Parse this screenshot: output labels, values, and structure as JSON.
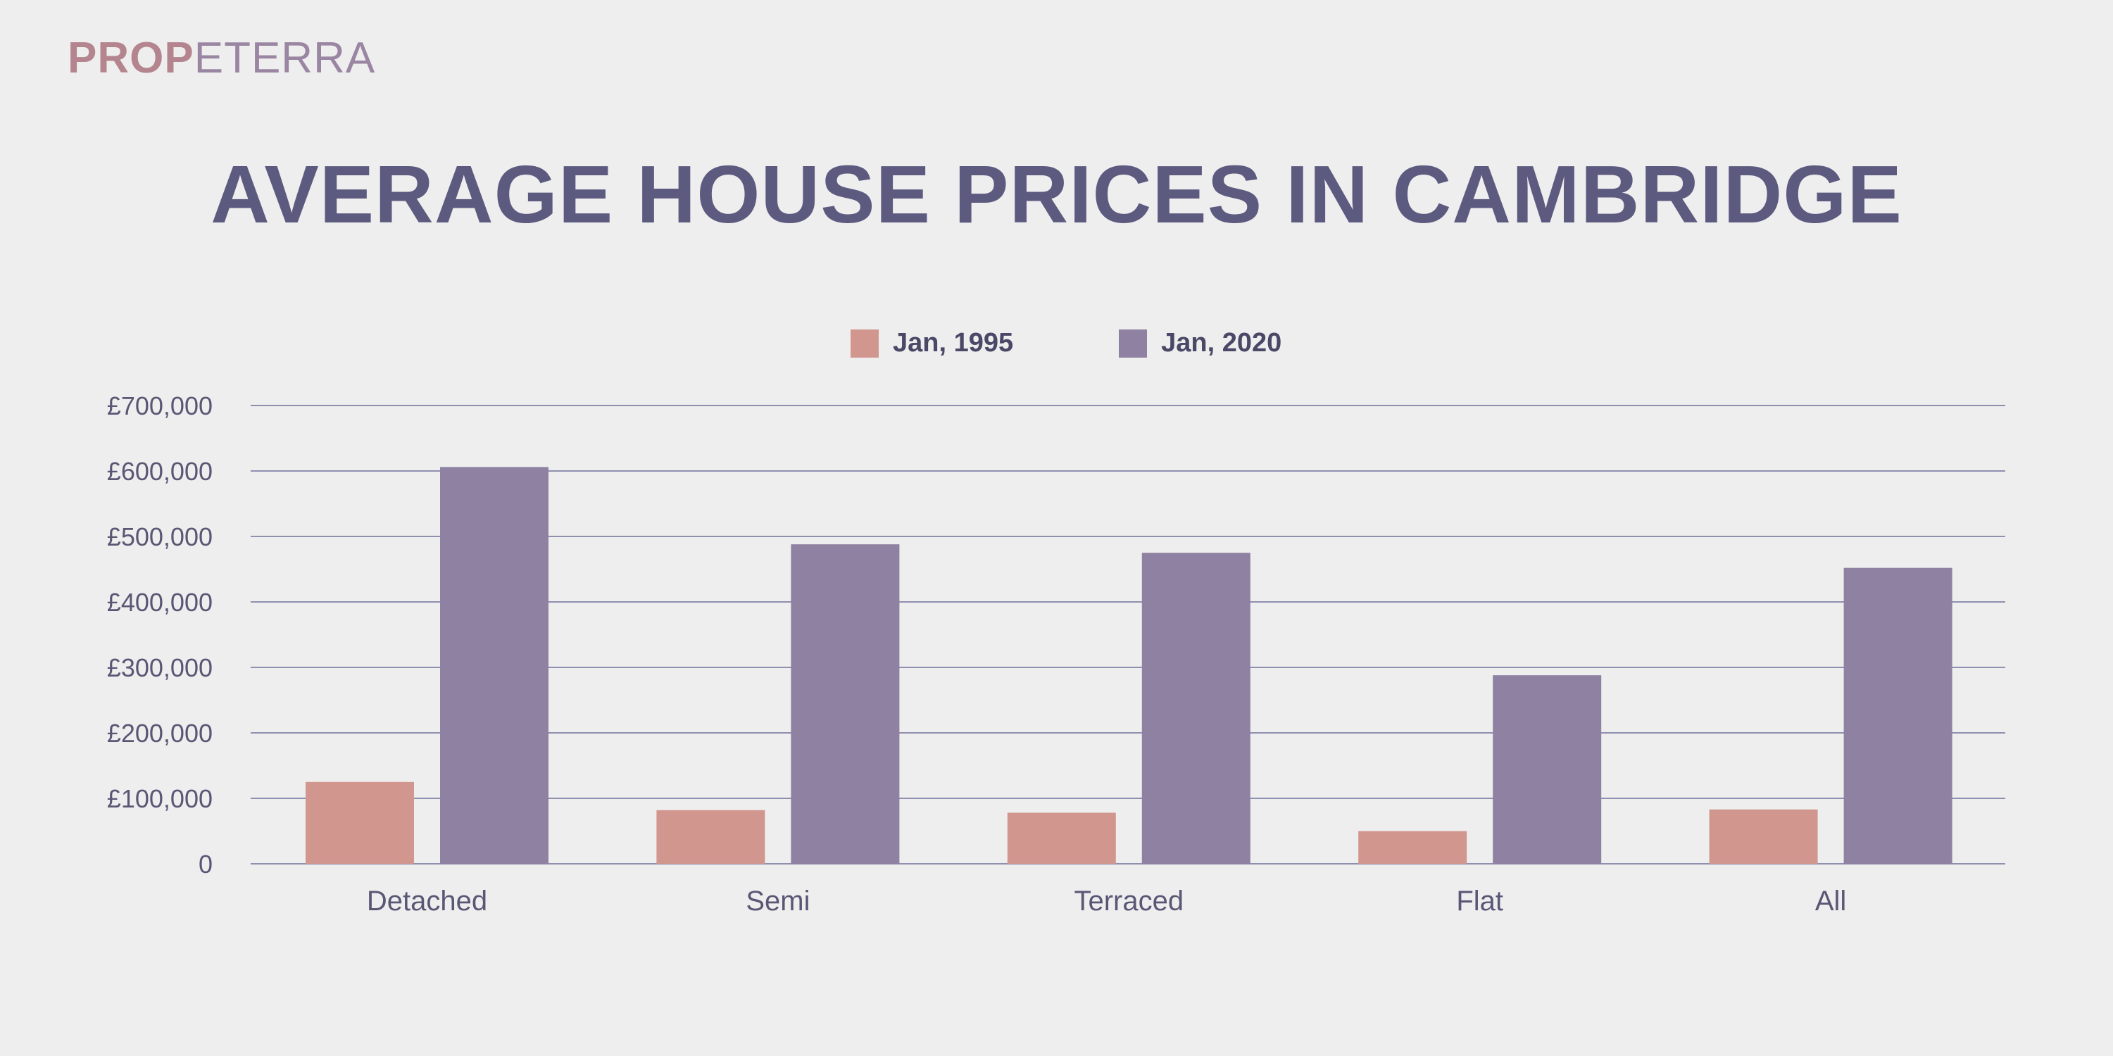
{
  "brand": {
    "logo_bold": "PROP",
    "logo_light": "ETERRA"
  },
  "colors": {
    "series_1995": "#d1978f",
    "series_2020": "#8f81a1",
    "grid": "#8f8fb0",
    "title": "#5d5a80"
  },
  "chart_data": {
    "type": "bar",
    "title": "AVERAGE HOUSE PRICES IN CAMBRIDGE",
    "categories": [
      "Detached",
      "Semi",
      "Terraced",
      "Flat",
      "All"
    ],
    "series": [
      {
        "name": "Jan, 1995",
        "values": [
          125000,
          82000,
          78000,
          50000,
          83000
        ]
      },
      {
        "name": "Jan, 2020",
        "values": [
          606000,
          488000,
          475000,
          288000,
          452000
        ]
      }
    ],
    "y_ticks": [
      "0",
      "£100,000",
      "£200,000",
      "£300,000",
      "£400,000",
      "£500,000",
      "£600,000",
      "£700,000"
    ],
    "ylim": [
      0,
      700000
    ],
    "grid": true,
    "legend_position": "top-center"
  }
}
